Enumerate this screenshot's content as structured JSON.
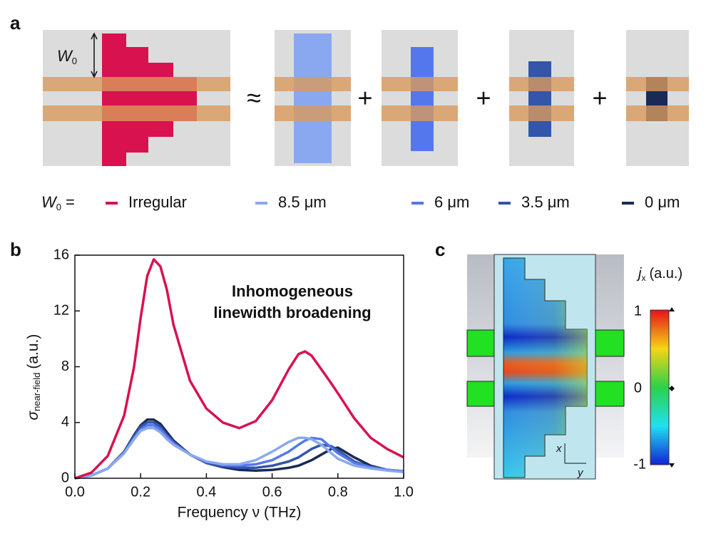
{
  "panel_labels": [
    "a",
    "b",
    "c"
  ],
  "panel_a": {
    "width_symbol": "W",
    "width_sub": "0",
    "symbols": [
      "≈",
      "+",
      "+",
      "+"
    ],
    "legend_prefix": "W",
    "legend_prefix_sub": "0",
    "legend_equals": "="
  },
  "chart_data": {
    "type": "line",
    "annotation": [
      "Inhomogeneous",
      "linewidth broadening"
    ],
    "x_label": "Frequency ν (THz)",
    "y_label": "σ",
    "y_label_sub": "near-field",
    "y_label_unit": "(a.u.)",
    "x": [
      0,
      0.05,
      0.1,
      0.15,
      0.18,
      0.2,
      0.22,
      0.24,
      0.26,
      0.28,
      0.3,
      0.35,
      0.4,
      0.45,
      0.5,
      0.55,
      0.6,
      0.65,
      0.68,
      0.7,
      0.72,
      0.75,
      0.78,
      0.8,
      0.85,
      0.9,
      0.95,
      1.0
    ],
    "series": [
      {
        "name": "Irregular",
        "color": "#d8124e",
        "values": [
          0,
          0.4,
          1.6,
          4.5,
          8.0,
          11.5,
          14.5,
          15.7,
          15.2,
          13.5,
          11.0,
          7.0,
          5.0,
          4.0,
          3.6,
          4.1,
          5.6,
          7.8,
          8.9,
          9.1,
          8.8,
          7.8,
          6.8,
          6.1,
          4.3,
          2.9,
          2.1,
          1.5
        ]
      },
      {
        "name": "8.5 μm",
        "color": "#8aa8f0",
        "values": [
          0,
          0.2,
          0.7,
          1.8,
          2.8,
          3.4,
          3.6,
          3.6,
          3.3,
          2.8,
          2.4,
          1.7,
          1.2,
          1.0,
          1.0,
          1.3,
          1.9,
          2.6,
          2.9,
          2.9,
          2.8,
          2.4,
          1.8,
          1.4,
          0.9,
          0.7,
          0.55,
          0.45
        ]
      },
      {
        "name": "6 μm",
        "color": "#5577ee",
        "values": [
          0,
          0.2,
          0.7,
          1.8,
          2.9,
          3.5,
          3.8,
          3.8,
          3.5,
          3.0,
          2.5,
          1.7,
          1.2,
          0.95,
          0.9,
          1.0,
          1.3,
          1.9,
          2.4,
          2.7,
          2.9,
          2.8,
          2.2,
          1.8,
          1.1,
          0.8,
          0.6,
          0.5
        ]
      },
      {
        "name": "3.5 μm",
        "color": "#3355aa",
        "values": [
          0,
          0.2,
          0.7,
          1.9,
          3.0,
          3.7,
          4.0,
          4.0,
          3.7,
          3.1,
          2.6,
          1.7,
          1.1,
          0.85,
          0.75,
          0.75,
          0.9,
          1.2,
          1.5,
          1.8,
          2.1,
          2.4,
          2.3,
          2.0,
          1.2,
          0.8,
          0.6,
          0.5
        ]
      },
      {
        "name": "0 μm",
        "color": "#1a2a55",
        "values": [
          0,
          0.2,
          0.7,
          1.9,
          3.1,
          3.8,
          4.2,
          4.2,
          3.9,
          3.3,
          2.7,
          1.7,
          1.1,
          0.8,
          0.6,
          0.55,
          0.6,
          0.75,
          0.9,
          1.1,
          1.3,
          1.7,
          2.1,
          2.2,
          1.5,
          0.9,
          0.6,
          0.5
        ]
      }
    ],
    "xlim": [
      0,
      1.0
    ],
    "xticks": [
      {
        "value": 0,
        "label": "0.0"
      },
      {
        "value": 0.2,
        "label": "0.2"
      },
      {
        "value": 0.4,
        "label": "0.4"
      },
      {
        "value": 0.6,
        "label": "0.6"
      },
      {
        "value": 0.8,
        "label": "0.8"
      },
      {
        "value": 1.0,
        "label": "1.0"
      }
    ],
    "ylim": [
      0,
      16
    ],
    "yticks": [
      0,
      4,
      8,
      12,
      16
    ]
  },
  "panel_c": {
    "label": "j",
    "label_sub": "x",
    "label_unit": "(a.u.)",
    "colorbar_ticks": [
      "1",
      "0",
      "-1"
    ],
    "axis_x": "x",
    "axis_y": "y"
  }
}
